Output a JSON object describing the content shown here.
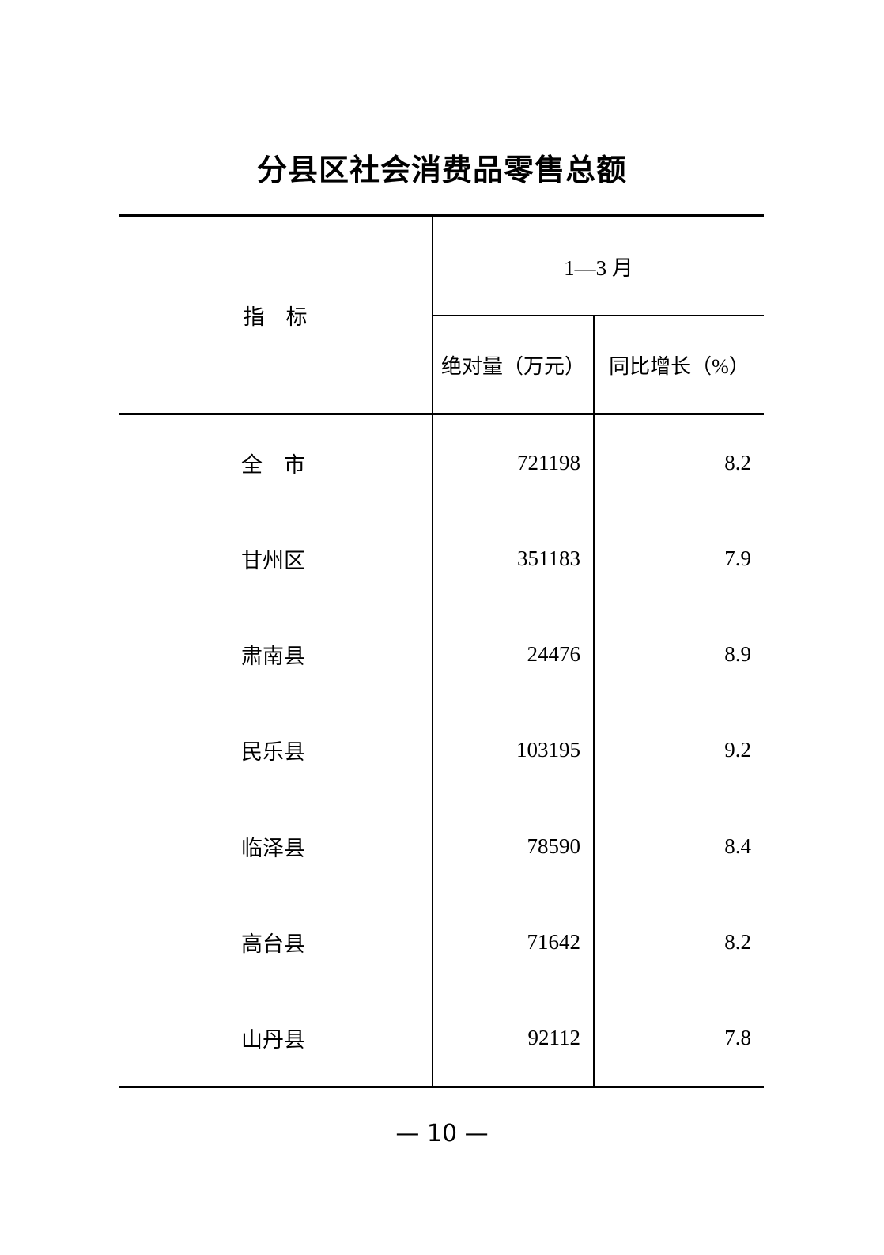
{
  "page": {
    "title": "分县区社会消费品零售总额",
    "footer": "— 10 —"
  },
  "table": {
    "header": {
      "indicator_label": "指　标",
      "period_label": "1—3 月",
      "col_absolute": "绝对量（万元）",
      "col_growth": "同比增长（%）"
    },
    "rows": [
      {
        "name": "全　市",
        "absolute": "721198",
        "growth": "8.2"
      },
      {
        "name": "甘州区",
        "absolute": "351183",
        "growth": "7.9"
      },
      {
        "name": "肃南县",
        "absolute": "24476",
        "growth": "8.9"
      },
      {
        "name": "民乐县",
        "absolute": "103195",
        "growth": "9.2"
      },
      {
        "name": "临泽县",
        "absolute": "78590",
        "growth": "8.4"
      },
      {
        "name": "高台县",
        "absolute": "71642",
        "growth": "8.2"
      },
      {
        "name": "山丹县",
        "absolute": "92112",
        "growth": "7.8"
      }
    ]
  },
  "chart_data": {
    "type": "table",
    "title": "分县区社会消费品零售总额",
    "period": "1—3 月",
    "columns": [
      "指标",
      "绝对量（万元）",
      "同比增长（%）"
    ],
    "categories": [
      "全市",
      "甘州区",
      "肃南县",
      "民乐县",
      "临泽县",
      "高台县",
      "山丹县"
    ],
    "series": [
      {
        "name": "绝对量（万元）",
        "values": [
          721198,
          351183,
          24476,
          103195,
          78590,
          71642,
          92112
        ]
      },
      {
        "name": "同比增长（%）",
        "values": [
          8.2,
          7.9,
          8.9,
          9.2,
          8.4,
          8.2,
          7.8
        ]
      }
    ]
  }
}
